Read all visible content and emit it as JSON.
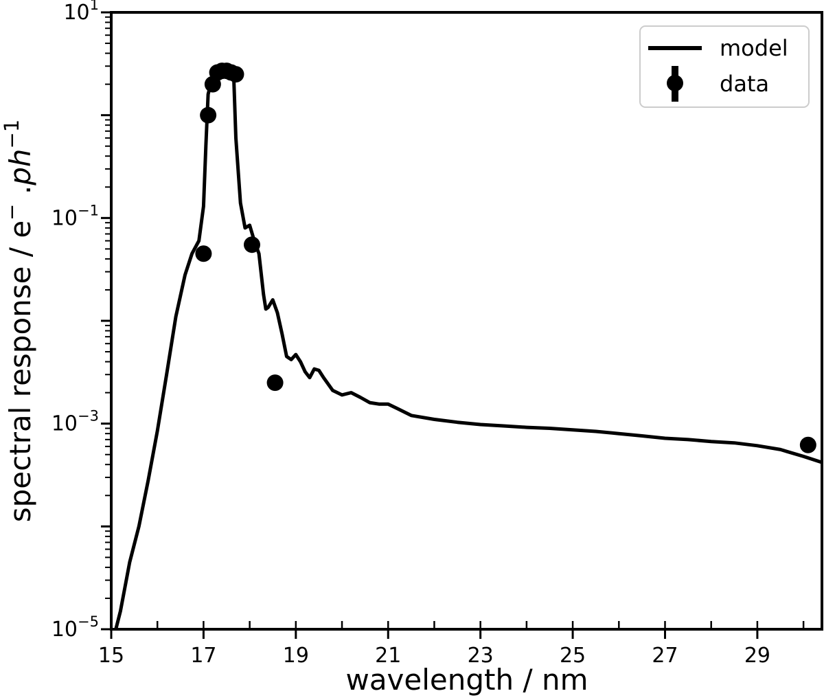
{
  "chart_data": {
    "type": "line",
    "title": "",
    "xlabel": "wavelength / nm",
    "ylabel": "spectral response / e⁻.ph⁻¹",
    "xlim": [
      15,
      30.4
    ],
    "ylim": [
      1e-05,
      10
    ],
    "yscale": "log",
    "grid": false,
    "legend_position": "top-right",
    "xticks": [
      15,
      17,
      19,
      21,
      23,
      25,
      27,
      29
    ],
    "yticks": [
      {
        "value": 1e-05,
        "base": "10",
        "exp": "−5"
      },
      {
        "value": 0.001,
        "base": "10",
        "exp": "−3"
      },
      {
        "value": 0.1,
        "base": "10",
        "exp": "−1"
      },
      {
        "value": 10,
        "base": "10",
        "exp": "1"
      }
    ],
    "series": [
      {
        "name": "model",
        "kind": "line",
        "color": "#000000",
        "x": [
          15.1,
          15.2,
          15.4,
          15.6,
          15.8,
          16.0,
          16.2,
          16.4,
          16.6,
          16.75,
          16.9,
          17.0,
          17.05,
          17.1,
          17.2,
          17.3,
          17.45,
          17.55,
          17.65,
          17.7,
          17.8,
          17.9,
          18.0,
          18.1,
          18.2,
          18.3,
          18.35,
          18.4,
          18.5,
          18.6,
          18.7,
          18.8,
          18.9,
          19.0,
          19.1,
          19.2,
          19.3,
          19.4,
          19.5,
          19.6,
          19.8,
          20.0,
          20.2,
          20.4,
          20.6,
          20.8,
          21.0,
          21.2,
          21.5,
          22.0,
          22.5,
          23.0,
          23.5,
          24.0,
          24.5,
          25.0,
          25.5,
          26.0,
          26.5,
          27.0,
          27.5,
          28.0,
          28.5,
          29.0,
          29.5,
          30.0,
          30.4
        ],
        "y": [
          1e-05,
          1.5e-05,
          4.5e-05,
          0.0001,
          0.00028,
          0.00085,
          0.003,
          0.011,
          0.028,
          0.045,
          0.06,
          0.13,
          0.5,
          1.6,
          2.4,
          2.9,
          2.9,
          2.85,
          2.7,
          0.6,
          0.14,
          0.08,
          0.085,
          0.06,
          0.045,
          0.018,
          0.013,
          0.0135,
          0.016,
          0.012,
          0.0075,
          0.0045,
          0.0042,
          0.0047,
          0.004,
          0.0032,
          0.0028,
          0.0034,
          0.0033,
          0.0028,
          0.0021,
          0.0019,
          0.002,
          0.0018,
          0.0016,
          0.00155,
          0.00155,
          0.0014,
          0.0012,
          0.0011,
          0.00103,
          0.00098,
          0.00095,
          0.00092,
          0.0009,
          0.00087,
          0.00084,
          0.0008,
          0.00076,
          0.00072,
          0.0007,
          0.00067,
          0.00065,
          0.00061,
          0.00056,
          0.00048,
          0.00042
        ]
      },
      {
        "name": "data",
        "kind": "errorbar",
        "color": "#000000",
        "x": [
          17.0,
          17.1,
          17.2,
          17.3,
          17.4,
          17.5,
          17.6,
          17.7,
          18.05,
          18.55,
          30.1
        ],
        "y": [
          0.045,
          1.0,
          2.0,
          2.6,
          2.7,
          2.7,
          2.6,
          2.5,
          0.055,
          0.0025,
          0.00062
        ]
      }
    ]
  }
}
